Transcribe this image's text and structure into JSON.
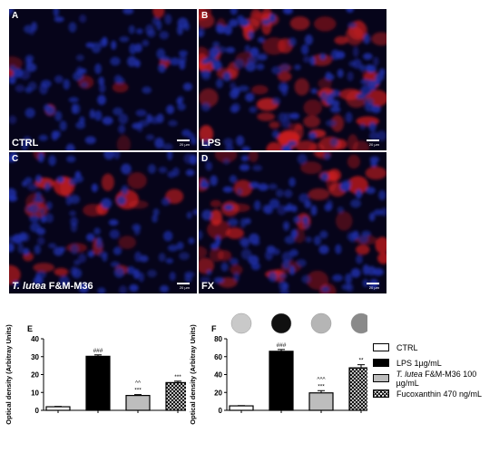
{
  "panels": {
    "A": {
      "letter": "A",
      "condition": "CTRL",
      "scale": "20 µm"
    },
    "B": {
      "letter": "B",
      "condition": "LPS",
      "scale": "20 µm"
    },
    "C": {
      "letter": "C",
      "condition_italic": "T. lutea",
      "condition_rest": " F&M-M36",
      "scale": "20 µm"
    },
    "D": {
      "letter": "D",
      "condition": "FX",
      "scale": "20 µm"
    }
  },
  "colors": {
    "nuclei": "#1e2fa8",
    "stain": "#d61f1f",
    "background": "#06041a"
  },
  "chart_data": [
    {
      "id": "E",
      "type": "bar",
      "panel_label": "E",
      "ylabel": "Optical density (Arbitray Units)",
      "ylim": [
        0,
        40
      ],
      "yticks": [
        0,
        10,
        20,
        30,
        40
      ],
      "categories": [
        "CTRL",
        "LPS 1µg/mL",
        "T. lutea F&M-M36 100 µg/mL",
        "Fucoxanthin 470 ng/mL"
      ],
      "values": [
        2,
        30.2,
        8.3,
        15.5
      ],
      "errors": [
        0.2,
        0.8,
        0.5,
        0.8
      ],
      "annotations": [
        "",
        "###",
        "^^\n***",
        "***"
      ],
      "fills": [
        "white",
        "black",
        "grey",
        "check"
      ]
    },
    {
      "id": "F",
      "type": "bar",
      "panel_label": "F",
      "ylabel": "Optical density (Arbitray Units)",
      "ylim": [
        0,
        80
      ],
      "yticks": [
        0,
        20,
        40,
        60,
        80
      ],
      "categories": [
        "CTRL",
        "LPS 1µg/mL",
        "T. lutea F&M-M36 100 µg/mL",
        "Fucoxanthin 470 ng/mL"
      ],
      "values": [
        5,
        66,
        19.5,
        47.5
      ],
      "errors": [
        0.3,
        2,
        2.5,
        3.5
      ],
      "annotations": [
        "",
        "###",
        "^^^\n***",
        "**"
      ],
      "fills": [
        "white",
        "black",
        "grey",
        "check"
      ],
      "well_shades": [
        "#c9c9c9",
        "#101010",
        "#b5b5b5",
        "#8a8a8a"
      ]
    }
  ],
  "legend": {
    "items": [
      {
        "label": "CTRL"
      },
      {
        "label": "LPS 1µg/mL"
      },
      {
        "label_italic": "T. lutea",
        "label_rest": " F&M-M36 100 µg/mL"
      },
      {
        "label": "Fucoxanthin 470 ng/mL"
      }
    ]
  }
}
